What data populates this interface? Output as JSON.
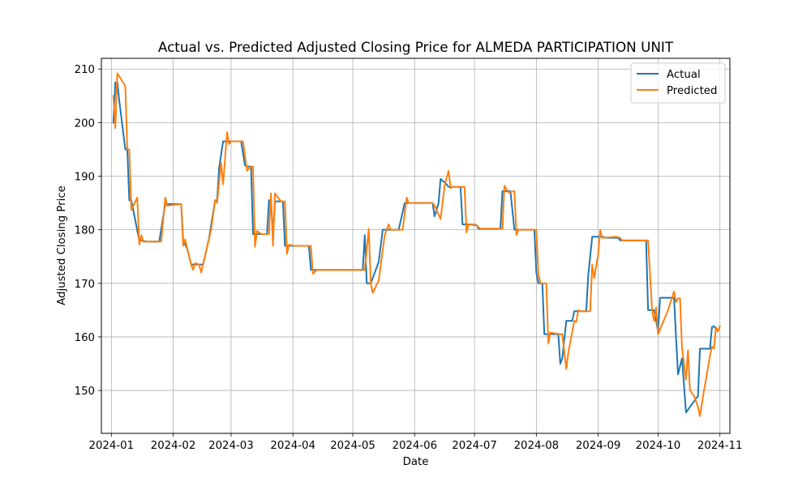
{
  "chart_data": {
    "type": "line",
    "title": "Actual vs. Predicted Adjusted Closing Price for ALMEDA PARTICIPATION UNIT",
    "xlabel": "Date",
    "ylabel": "Adjusted Closing Price",
    "xlim": [
      "2023-12-27",
      "2024-11-06"
    ],
    "ylim": [
      142,
      212
    ],
    "grid": true,
    "legend_position": "top-right",
    "x_ticks": [
      "2024-01-01",
      "2024-02-01",
      "2024-03-01",
      "2024-04-01",
      "2024-05-01",
      "2024-06-01",
      "2024-07-01",
      "2024-08-01",
      "2024-09-01",
      "2024-10-01",
      "2024-11-01"
    ],
    "x_tick_labels": [
      "2024-01",
      "2024-02",
      "2024-03",
      "2024-04",
      "2024-05",
      "2024-06",
      "2024-07",
      "2024-08",
      "2024-09",
      "2024-10",
      "2024-11"
    ],
    "y_ticks": [
      150,
      160,
      170,
      180,
      190,
      200,
      210
    ],
    "series": [
      {
        "name": "Actual",
        "color": "#1f77b4",
        "points": [
          [
            "2024-01-02",
            200.0
          ],
          [
            "2024-01-03",
            207.5
          ],
          [
            "2024-01-04",
            207.5
          ],
          [
            "2024-01-05",
            204.0
          ],
          [
            "2024-01-08",
            195.0
          ],
          [
            "2024-01-09",
            195.0
          ],
          [
            "2024-01-10",
            185.5
          ],
          [
            "2024-01-11",
            185.5
          ],
          [
            "2024-01-15",
            178.0
          ],
          [
            "2024-01-17",
            178.0
          ],
          [
            "2024-01-18",
            177.8
          ],
          [
            "2024-01-24",
            177.8
          ],
          [
            "2024-01-25",
            177.8
          ],
          [
            "2024-01-28",
            184.8
          ],
          [
            "2024-02-05",
            184.8
          ],
          [
            "2024-02-06",
            178.0
          ],
          [
            "2024-02-08",
            176.5
          ],
          [
            "2024-02-10",
            173.5
          ],
          [
            "2024-02-13",
            173.5
          ],
          [
            "2024-02-16",
            173.5
          ],
          [
            "2024-02-19",
            178.5
          ],
          [
            "2024-02-22",
            185.5
          ],
          [
            "2024-02-23",
            185.5
          ],
          [
            "2024-02-24",
            191.5
          ],
          [
            "2024-02-26",
            196.5
          ],
          [
            "2024-03-04",
            196.5
          ],
          [
            "2024-03-06",
            196.5
          ],
          [
            "2024-03-08",
            192.0
          ],
          [
            "2024-03-09",
            191.8
          ],
          [
            "2024-03-11",
            191.8
          ],
          [
            "2024-03-12",
            179.2
          ],
          [
            "2024-03-13",
            179.2
          ],
          [
            "2024-03-19",
            179.2
          ],
          [
            "2024-03-20",
            185.5
          ],
          [
            "2024-03-21",
            185.5
          ],
          [
            "2024-03-22",
            178.9
          ],
          [
            "2024-03-23",
            185.3
          ],
          [
            "2024-03-27",
            185.3
          ],
          [
            "2024-03-28",
            177.0
          ],
          [
            "2024-04-02",
            177.0
          ],
          [
            "2024-04-09",
            177.0
          ],
          [
            "2024-04-10",
            172.5
          ],
          [
            "2024-04-13",
            172.5
          ],
          [
            "2024-05-06",
            172.5
          ],
          [
            "2024-05-07",
            179.0
          ],
          [
            "2024-05-08",
            170.0
          ],
          [
            "2024-05-10",
            170.0
          ],
          [
            "2024-05-14",
            174.0
          ],
          [
            "2024-05-16",
            180.0
          ],
          [
            "2024-05-20",
            180.0
          ],
          [
            "2024-05-24",
            180.0
          ],
          [
            "2024-05-27",
            185.0
          ],
          [
            "2024-06-06",
            185.0
          ],
          [
            "2024-06-10",
            185.0
          ],
          [
            "2024-06-11",
            182.5
          ],
          [
            "2024-06-13",
            185.0
          ],
          [
            "2024-06-14",
            189.5
          ],
          [
            "2024-06-17",
            188.5
          ],
          [
            "2024-06-18",
            188.0
          ],
          [
            "2024-06-24",
            188.0
          ],
          [
            "2024-06-25",
            181.0
          ],
          [
            "2024-06-27",
            181.0
          ],
          [
            "2024-06-29",
            181.0
          ],
          [
            "2024-07-02",
            180.9
          ],
          [
            "2024-07-03",
            180.2
          ],
          [
            "2024-07-11",
            180.2
          ],
          [
            "2024-07-14",
            180.2
          ],
          [
            "2024-07-15",
            187.2
          ],
          [
            "2024-07-19",
            187.2
          ],
          [
            "2024-07-21",
            180.0
          ],
          [
            "2024-07-24",
            180.0
          ],
          [
            "2024-07-31",
            180.0
          ],
          [
            "2024-08-01",
            172.0
          ],
          [
            "2024-08-02",
            170.0
          ],
          [
            "2024-08-04",
            170.0
          ],
          [
            "2024-08-05",
            160.5
          ],
          [
            "2024-08-08",
            160.5
          ],
          [
            "2024-08-12",
            160.5
          ],
          [
            "2024-08-13",
            155.0
          ],
          [
            "2024-08-14",
            156.0
          ],
          [
            "2024-08-16",
            163.0
          ],
          [
            "2024-08-19",
            163.0
          ],
          [
            "2024-08-20",
            164.8
          ],
          [
            "2024-08-26",
            164.8
          ],
          [
            "2024-08-27",
            171.5
          ],
          [
            "2024-08-29",
            178.7
          ],
          [
            "2024-09-03",
            178.7
          ],
          [
            "2024-09-05",
            178.5
          ],
          [
            "2024-09-10",
            178.5
          ],
          [
            "2024-09-11",
            178.5
          ],
          [
            "2024-09-12",
            178.0
          ],
          [
            "2024-09-16",
            178.0
          ],
          [
            "2024-09-25",
            178.0
          ],
          [
            "2024-09-26",
            165.0
          ],
          [
            "2024-09-29",
            165.0
          ],
          [
            "2024-09-30",
            163.0
          ],
          [
            "2024-10-01",
            161.0
          ],
          [
            "2024-10-02",
            167.3
          ],
          [
            "2024-10-07",
            167.3
          ],
          [
            "2024-10-09",
            167.3
          ],
          [
            "2024-10-10",
            160.0
          ],
          [
            "2024-10-11",
            153.0
          ],
          [
            "2024-10-13",
            156.0
          ],
          [
            "2024-10-15",
            145.9
          ],
          [
            "2024-10-21",
            149.0
          ],
          [
            "2024-10-22",
            157.8
          ],
          [
            "2024-10-24",
            157.8
          ],
          [
            "2024-10-25",
            157.8
          ],
          [
            "2024-10-26",
            157.8
          ],
          [
            "2024-10-27",
            157.8
          ],
          [
            "2024-10-28",
            161.8
          ],
          [
            "2024-10-29",
            162.0
          ],
          [
            "2024-10-30",
            161.5
          ]
        ]
      },
      {
        "name": "Predicted",
        "color": "#ff7f0e",
        "points": [
          [
            "2024-01-02",
            205.0
          ],
          [
            "2024-01-03",
            199.0
          ],
          [
            "2024-01-04",
            209.2
          ],
          [
            "2024-01-08",
            206.8
          ],
          [
            "2024-01-09",
            195.0
          ],
          [
            "2024-01-10",
            195.0
          ],
          [
            "2024-01-11",
            183.7
          ],
          [
            "2024-01-14",
            186.0
          ],
          [
            "2024-01-15",
            177.2
          ],
          [
            "2024-01-16",
            179.0
          ],
          [
            "2024-01-17",
            177.8
          ],
          [
            "2024-01-20",
            177.8
          ],
          [
            "2024-01-26",
            177.8
          ],
          [
            "2024-01-28",
            186.0
          ],
          [
            "2024-01-29",
            184.5
          ],
          [
            "2024-02-05",
            184.8
          ],
          [
            "2024-02-06",
            177.0
          ],
          [
            "2024-02-07",
            178.2
          ],
          [
            "2024-02-10",
            173.5
          ],
          [
            "2024-02-11",
            172.5
          ],
          [
            "2024-02-12",
            173.8
          ],
          [
            "2024-02-14",
            173.5
          ],
          [
            "2024-02-15",
            172.0
          ],
          [
            "2024-02-20",
            180.0
          ],
          [
            "2024-02-22",
            185.5
          ],
          [
            "2024-02-23",
            185.0
          ],
          [
            "2024-02-25",
            192.5
          ],
          [
            "2024-02-26",
            188.5
          ],
          [
            "2024-02-28",
            198.2
          ],
          [
            "2024-02-29",
            196.0
          ],
          [
            "2024-03-01",
            196.5
          ],
          [
            "2024-03-06",
            196.5
          ],
          [
            "2024-03-07",
            196.5
          ],
          [
            "2024-03-09",
            191.0
          ],
          [
            "2024-03-11",
            191.8
          ],
          [
            "2024-03-12",
            191.8
          ],
          [
            "2024-03-13",
            176.8
          ],
          [
            "2024-03-14",
            179.8
          ],
          [
            "2024-03-16",
            179.2
          ],
          [
            "2024-03-20",
            179.2
          ],
          [
            "2024-03-21",
            186.8
          ],
          [
            "2024-03-22",
            177.0
          ],
          [
            "2024-03-23",
            186.8
          ],
          [
            "2024-03-26",
            185.3
          ],
          [
            "2024-03-28",
            185.3
          ],
          [
            "2024-03-29",
            175.5
          ],
          [
            "2024-03-30",
            177.2
          ],
          [
            "2024-04-02",
            177.0
          ],
          [
            "2024-04-10",
            177.0
          ],
          [
            "2024-04-11",
            171.8
          ],
          [
            "2024-04-13",
            172.5
          ],
          [
            "2024-05-07",
            172.5
          ],
          [
            "2024-05-09",
            180.2
          ],
          [
            "2024-05-10",
            170.0
          ],
          [
            "2024-05-11",
            168.2
          ],
          [
            "2024-05-14",
            170.5
          ],
          [
            "2024-05-17",
            179.0
          ],
          [
            "2024-05-19",
            181.0
          ],
          [
            "2024-05-20",
            180.0
          ],
          [
            "2024-05-26",
            180.0
          ],
          [
            "2024-05-28",
            186.0
          ],
          [
            "2024-05-29",
            185.0
          ],
          [
            "2024-06-05",
            185.0
          ],
          [
            "2024-06-10",
            185.0
          ],
          [
            "2024-06-11",
            184.5
          ],
          [
            "2024-06-14",
            182.0
          ],
          [
            "2024-06-16",
            188.2
          ],
          [
            "2024-06-18",
            191.0
          ],
          [
            "2024-06-19",
            187.8
          ],
          [
            "2024-06-20",
            188.0
          ],
          [
            "2024-06-26",
            188.0
          ],
          [
            "2024-06-27",
            179.5
          ],
          [
            "2024-06-28",
            181.0
          ],
          [
            "2024-07-02",
            180.8
          ],
          [
            "2024-07-03",
            180.5
          ],
          [
            "2024-07-04",
            180.2
          ],
          [
            "2024-07-10",
            180.2
          ],
          [
            "2024-07-15",
            180.2
          ],
          [
            "2024-07-16",
            188.2
          ],
          [
            "2024-07-18",
            187.0
          ],
          [
            "2024-07-21",
            187.2
          ],
          [
            "2024-07-22",
            179.0
          ],
          [
            "2024-07-23",
            180.0
          ],
          [
            "2024-07-26",
            180.0
          ],
          [
            "2024-07-30",
            180.0
          ],
          [
            "2024-08-01",
            180.0
          ],
          [
            "2024-08-02",
            172.0
          ],
          [
            "2024-08-03",
            170.0
          ],
          [
            "2024-08-06",
            170.0
          ],
          [
            "2024-08-07",
            158.8
          ],
          [
            "2024-08-08",
            160.8
          ],
          [
            "2024-08-13",
            160.5
          ],
          [
            "2024-08-14",
            160.5
          ],
          [
            "2024-08-16",
            154.0
          ],
          [
            "2024-08-17",
            157.0
          ],
          [
            "2024-08-20",
            163.0
          ],
          [
            "2024-08-21",
            162.8
          ],
          [
            "2024-08-22",
            165.0
          ],
          [
            "2024-08-23",
            164.8
          ],
          [
            "2024-08-28",
            164.8
          ],
          [
            "2024-08-29",
            173.5
          ],
          [
            "2024-08-30",
            171.0
          ],
          [
            "2024-09-01",
            175.5
          ],
          [
            "2024-09-02",
            180.0
          ],
          [
            "2024-09-03",
            178.5
          ],
          [
            "2024-09-10",
            178.7
          ],
          [
            "2024-09-12",
            178.5
          ],
          [
            "2024-09-13",
            178.0
          ],
          [
            "2024-09-20",
            178.0
          ],
          [
            "2024-09-26",
            178.0
          ],
          [
            "2024-09-28",
            165.0
          ],
          [
            "2024-09-29",
            163.0
          ],
          [
            "2024-09-30",
            165.5
          ],
          [
            "2024-10-01",
            160.5
          ],
          [
            "2024-10-06",
            165.0
          ],
          [
            "2024-10-09",
            168.5
          ],
          [
            "2024-10-10",
            166.5
          ],
          [
            "2024-10-11",
            167.2
          ],
          [
            "2024-10-12",
            167.2
          ],
          [
            "2024-10-13",
            158.0
          ],
          [
            "2024-10-15",
            152.0
          ],
          [
            "2024-10-16",
            157.5
          ],
          [
            "2024-10-17",
            150.0
          ],
          [
            "2024-10-19",
            149.0
          ],
          [
            "2024-10-21",
            147.0
          ],
          [
            "2024-10-22",
            145.2
          ],
          [
            "2024-10-24",
            150.0
          ],
          [
            "2024-10-25",
            152.0
          ],
          [
            "2024-10-27",
            156.5
          ],
          [
            "2024-10-28",
            158.2
          ],
          [
            "2024-10-29",
            157.8
          ],
          [
            "2024-10-30",
            161.8
          ],
          [
            "2024-10-31",
            161.0
          ],
          [
            "2024-11-01",
            162.0
          ]
        ]
      }
    ]
  }
}
